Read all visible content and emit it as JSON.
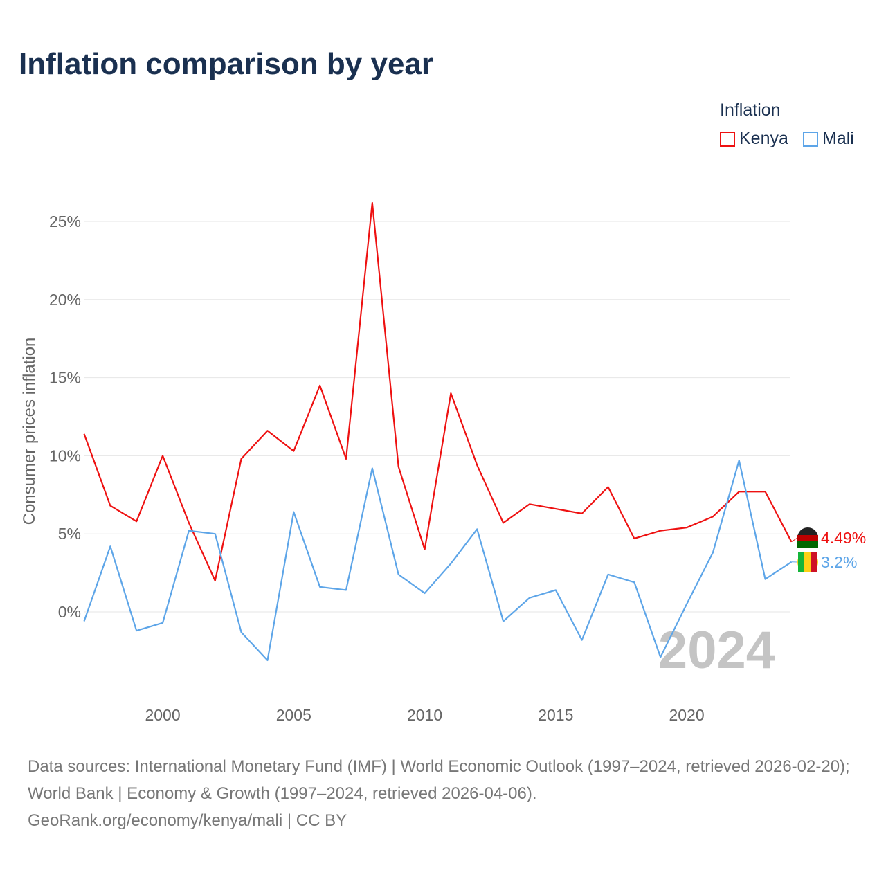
{
  "chart_data": {
    "type": "line",
    "title": "Inflation comparison by year",
    "ylabel": "Consumer prices inflation",
    "xlabel": "",
    "legend_title": "Inflation",
    "legend_position": "top-right",
    "x": [
      1997,
      1998,
      1999,
      2000,
      2001,
      2002,
      2003,
      2004,
      2005,
      2006,
      2007,
      2008,
      2009,
      2010,
      2011,
      2012,
      2013,
      2014,
      2015,
      2016,
      2017,
      2018,
      2019,
      2020,
      2021,
      2022,
      2023,
      2024
    ],
    "series": [
      {
        "name": "Kenya",
        "color": "#ee1111",
        "end_label": "4.49%",
        "values": [
          11.4,
          6.8,
          5.8,
          10.0,
          5.7,
          2.0,
          9.8,
          11.6,
          10.3,
          14.5,
          9.8,
          26.2,
          9.3,
          4.0,
          14.0,
          9.4,
          5.7,
          6.9,
          6.6,
          6.3,
          8.0,
          4.7,
          5.2,
          5.4,
          6.1,
          7.7,
          7.7,
          4.49
        ]
      },
      {
        "name": "Mali",
        "color": "#5da5e8",
        "end_label": "3.2%",
        "values": [
          -0.6,
          4.2,
          -1.2,
          -0.7,
          5.2,
          5.0,
          -1.3,
          -3.1,
          6.4,
          1.6,
          1.4,
          9.2,
          2.4,
          1.2,
          3.1,
          5.3,
          -0.6,
          0.9,
          1.4,
          -1.8,
          2.4,
          1.9,
          -2.9,
          0.5,
          3.8,
          9.7,
          2.1,
          3.2
        ]
      }
    ],
    "yticks": [
      0,
      5,
      10,
      15,
      20,
      25
    ],
    "ytick_labels": [
      "0%",
      "5%",
      "10%",
      "15%",
      "20%",
      "25%"
    ],
    "xticks": [
      2000,
      2005,
      2010,
      2015,
      2020
    ],
    "xtick_labels": [
      "2000",
      "2005",
      "2010",
      "2015",
      "2020"
    ],
    "xlim": [
      1997,
      2024
    ],
    "ylim": [
      -5,
      27
    ],
    "grid": true,
    "year_watermark": "2024"
  },
  "footer": {
    "sources": "Data sources: International Monetary Fund (IMF) | World Economic Outlook (1997–2024, retrieved 2026-02-20); World Bank | Economy & Growth (1997–2024, retrieved 2026-04-06).",
    "credit": "GeoRank.org/economy/kenya/mali | CC BY"
  }
}
